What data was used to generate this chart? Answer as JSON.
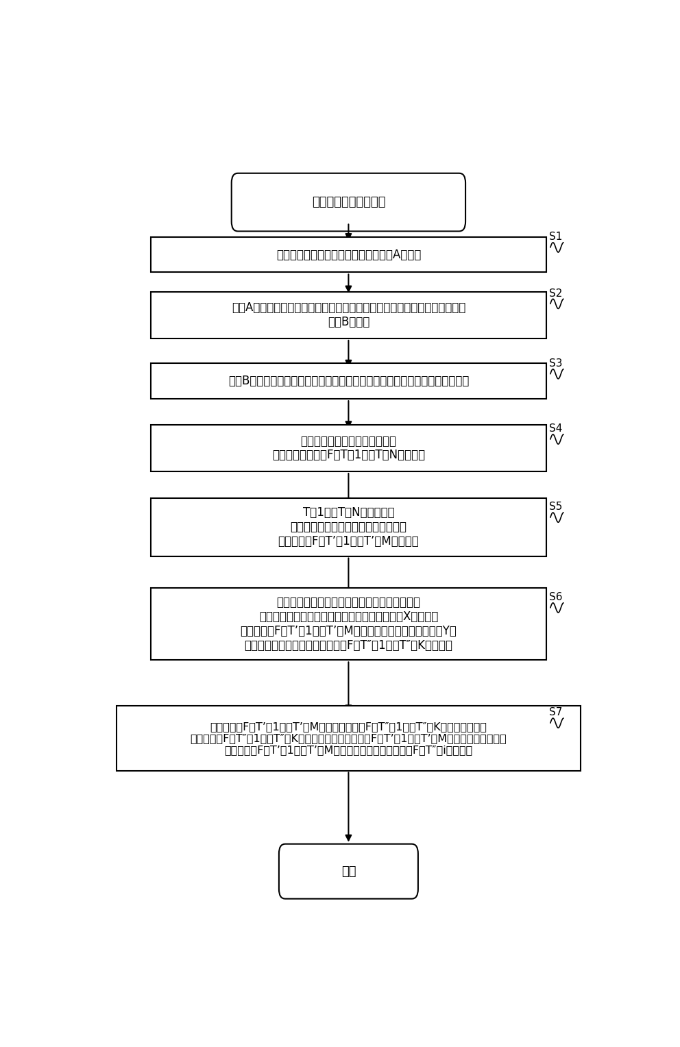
{
  "bg_color": "#ffffff",
  "fig_width": 9.92,
  "fig_height": 15.28,
  "start_text": "新規事業分野選択処理",
  "end_text": "終了",
  "boxes": [
    {
      "id": "S1",
      "text": "一の企業の強み技術の特許出願の集合Aを生成",
      "lines": 1
    },
    {
      "id": "S2",
      "text": "集合Aの被引用特許（一の企業の非競合となる他企業からの出願による）の\n集合Bを生成",
      "lines": 2
    },
    {
      "id": "S3",
      "text": "集合Bから被引用回数が多い上位の特許出願の出願人（有力候補他社）を抽出",
      "lines": 1
    },
    {
      "id": "S4",
      "text": "有力候補他社の各々の出願から\n上位のテーマコーFドT（1）～T（N）を抽出",
      "lines": 2
    },
    {
      "id": "S5",
      "text": "T（1）～T（N）のうち、\n一の企業が同等以上の技術力を有する\nテーマコーFドT’（1）～T’（M）を抽出",
      "lines": 3
    },
    {
      "id": "S6",
      "text": "「一の企業の強みの技術」と同じ技術について\n他のあらゆる企業から出願された知的財産出願Xのうち、\nテーマコーFドT’（1）～T’（M）が付与された知的財産出願Yに\n付与されている全てのテーマコーFドT″（1）～T″（K）を抽出",
      "lines": 4
    },
    {
      "id": "S7",
      "text": "テーマコーFドT’（1）～T’（M）にテーマコーFドT″（1）～T″（K）を対応付け、\nテーマコーFドT″（1）～T″（K）に対応するテーマコーFドT’（1）～T’（M）の総和を算出し、\nテーマコーFドT’（1）～T’（M）の総和の多いテーマコーFドT″（i）を選択",
      "lines": 3
    }
  ]
}
